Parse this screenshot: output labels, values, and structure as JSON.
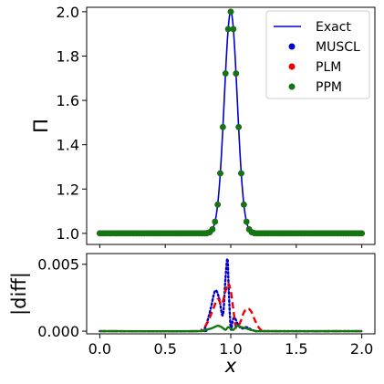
{
  "chart_data": [
    {
      "type": "line",
      "panel": "top",
      "ylabel": "Π",
      "xlim": [
        -0.1,
        2.1
      ],
      "ylim": [
        0.95,
        2.02
      ],
      "xticks": [
        0.0,
        0.5,
        1.0,
        1.5,
        2.0
      ],
      "yticks": [
        1.0,
        1.2,
        1.4,
        1.6,
        1.8,
        2.0
      ],
      "ytick_labels": [
        "1.0",
        "1.2",
        "1.4",
        "1.6",
        "1.8",
        "2.0"
      ],
      "profile": {
        "x_center": 1.0,
        "baseline": 1.0,
        "amplitude": 1.0,
        "sigma": 0.07
      },
      "series": [
        {
          "name": "Exact",
          "style": "line",
          "color": "#0000cc"
        },
        {
          "name": "MUSCL",
          "style": "points",
          "color": "#0000cc"
        },
        {
          "name": "PLM",
          "style": "points",
          "color": "#ee0000"
        },
        {
          "name": "PPM",
          "style": "points",
          "color": "#117711"
        }
      ],
      "legend": {
        "position": "top-right",
        "labels": [
          "Exact",
          "MUSCL",
          "PLM",
          "PPM"
        ]
      }
    },
    {
      "type": "line",
      "panel": "bottom",
      "xlabel": "x",
      "ylabel": "|diff|",
      "xlim": [
        -0.1,
        2.1
      ],
      "ylim": [
        -0.0002,
        0.0058
      ],
      "xticks": [
        0.0,
        0.5,
        1.0,
        1.5,
        2.0
      ],
      "xtick_labels": [
        "0.0",
        "0.5",
        "1.0",
        "1.5",
        "2.0"
      ],
      "yticks": [
        0.0,
        0.005
      ],
      "ytick_labels": [
        "0.000",
        "0.005"
      ],
      "series": [
        {
          "name": "MUSCL",
          "color": "#0000cc",
          "dash": "dotted",
          "x": [
            0.0,
            0.75,
            0.8,
            0.84,
            0.88,
            0.91,
            0.94,
            0.96,
            0.975,
            0.985,
            1.0,
            1.015,
            1.03,
            1.06,
            1.09,
            1.12,
            1.16,
            1.2,
            1.25,
            2.0
          ],
          "y": [
            0.0,
            0.0,
            0.0002,
            0.0014,
            0.003,
            0.0025,
            0.0012,
            0.004,
            0.0054,
            0.003,
            0.0002,
            0.0008,
            0.001,
            0.0004,
            0.0002,
            0.0003,
            0.0001,
            0.0,
            0.0,
            0.0
          ]
        },
        {
          "name": "PLM",
          "color": "#ee0000",
          "dash": "dashed",
          "x": [
            0.0,
            0.72,
            0.78,
            0.82,
            0.86,
            0.9,
            0.93,
            0.96,
            0.98,
            1.0,
            1.02,
            1.04,
            1.07,
            1.1,
            1.13,
            1.16,
            1.19,
            1.23,
            1.3,
            2.0
          ],
          "y": [
            0.0,
            0.0,
            0.00015,
            0.0006,
            0.0015,
            0.0024,
            0.002,
            0.003,
            0.0036,
            0.003,
            0.0016,
            0.0003,
            0.0006,
            0.0014,
            0.0017,
            0.0014,
            0.0007,
            0.0001,
            0.0,
            0.0
          ]
        },
        {
          "name": "PPM",
          "color": "#117711",
          "dash": "solid",
          "x": [
            0.0,
            0.72,
            0.8,
            0.85,
            0.9,
            0.93,
            0.96,
            0.98,
            1.0,
            1.02,
            1.05,
            1.08,
            1.12,
            1.15,
            1.2,
            1.28,
            2.0
          ],
          "y": [
            0.0,
            0.0,
            0.0001,
            0.0002,
            0.0004,
            0.0003,
            0.0001,
            0.0003,
            0.0002,
            0.0001,
            0.0004,
            0.0003,
            0.0002,
            0.0001,
            0.0,
            0.0,
            0.0
          ]
        }
      ]
    }
  ]
}
